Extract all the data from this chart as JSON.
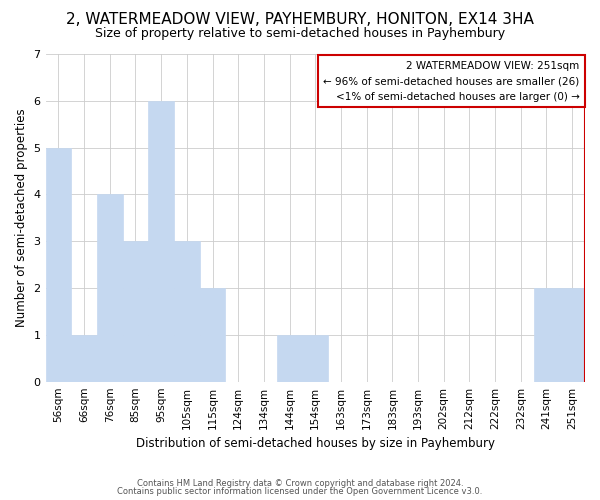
{
  "title": "2, WATERMEADOW VIEW, PAYHEMBURY, HONITON, EX14 3HA",
  "subtitle": "Size of property relative to semi-detached houses in Payhembury",
  "xlabel": "Distribution of semi-detached houses by size in Payhembury",
  "ylabel": "Number of semi-detached properties",
  "categories": [
    "56sqm",
    "66sqm",
    "76sqm",
    "85sqm",
    "95sqm",
    "105sqm",
    "115sqm",
    "124sqm",
    "134sqm",
    "144sqm",
    "154sqm",
    "163sqm",
    "173sqm",
    "183sqm",
    "193sqm",
    "202sqm",
    "212sqm",
    "222sqm",
    "232sqm",
    "241sqm",
    "251sqm"
  ],
  "values": [
    5,
    1,
    4,
    3,
    6,
    3,
    2,
    0,
    0,
    1,
    1,
    0,
    0,
    0,
    0,
    0,
    0,
    0,
    0,
    2,
    2
  ],
  "highlight_index": 20,
  "bar_color": "#c5d8f0",
  "highlight_color": "#cc0000",
  "ylim": [
    0,
    7
  ],
  "yticks": [
    0,
    1,
    2,
    3,
    4,
    5,
    6,
    7
  ],
  "legend_title": "2 WATERMEADOW VIEW: 251sqm",
  "legend_line1": "← 96% of semi-detached houses are smaller (26)",
  "legend_line2": "<1% of semi-detached houses are larger (0) →",
  "footnote1": "Contains HM Land Registry data © Crown copyright and database right 2024.",
  "footnote2": "Contains public sector information licensed under the Open Government Licence v3.0.",
  "grid_color": "#cccccc",
  "background_color": "#ffffff",
  "title_fontsize": 11,
  "subtitle_fontsize": 9
}
